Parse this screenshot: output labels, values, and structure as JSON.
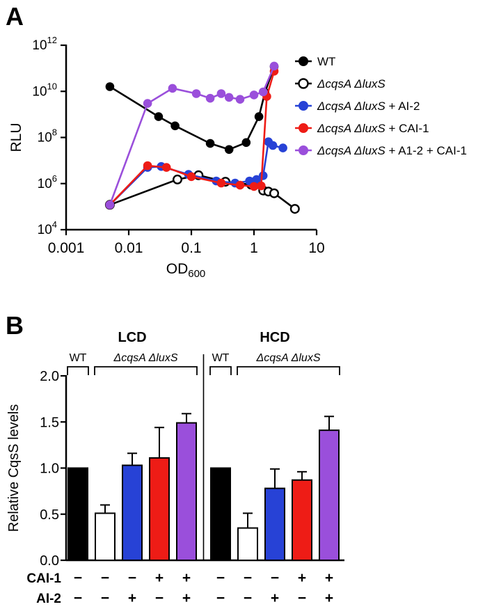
{
  "figure": {
    "panel_a_label": "A",
    "panel_b_label": "B"
  },
  "colors": {
    "black": "#000000",
    "white": "#ffffff",
    "blue": "#2742d6",
    "red": "#ee1c16",
    "purple": "#9a4fdb"
  },
  "chart_data": [
    {
      "type": "line",
      "id": "bioluminescence",
      "x_scale": "log",
      "y_scale": "log",
      "xlabel_base": "OD",
      "xlabel_sub": "600",
      "ylabel": "RLU",
      "x_ticks": [
        "0.001",
        "0.01",
        "0.1",
        "1",
        "10"
      ],
      "y_tick_exponents": [
        4,
        6,
        8,
        10,
        12
      ],
      "xlim": [
        0.001,
        10
      ],
      "ylim_exponents": [
        4,
        12
      ],
      "series": [
        {
          "id": "wt",
          "color": "#000000",
          "marker_fill": "#000000",
          "marker_stroke": "#000000",
          "marker_stroke_width": 1,
          "x": [
            0.005,
            0.03,
            0.055,
            0.2,
            0.4,
            0.75,
            1.2,
            1.5,
            2.1
          ],
          "y": [
            16000000000.0,
            800000000.0,
            320000000.0,
            55000000.0,
            30000000.0,
            60000000.0,
            800000000.0,
            9000000000.0,
            120000000000.0
          ]
        },
        {
          "id": "cqsA-luxS",
          "color": "#000000",
          "marker_fill": "#ffffff",
          "marker_stroke": "#000000",
          "marker_stroke_width": 2.4,
          "x": [
            0.005,
            0.06,
            0.13,
            0.35,
            0.9,
            1.4,
            1.7,
            2.1,
            4.5
          ],
          "y": [
            120000.0,
            1500000.0,
            2300000.0,
            1200000.0,
            900000.0,
            500000.0,
            450000.0,
            380000.0,
            80000.0
          ]
        },
        {
          "id": "cqsA-luxS-AI2",
          "color": "#2742d6",
          "marker_fill": "#2742d6",
          "marker_stroke": "#2742d6",
          "marker_stroke_width": 1,
          "x": [
            0.005,
            0.02,
            0.033,
            0.09,
            0.25,
            0.5,
            0.85,
            1.1,
            1.4,
            1.7,
            2.0,
            2.9
          ],
          "y": [
            120000.0,
            5000000.0,
            5500000.0,
            2500000.0,
            1300000.0,
            1050000.0,
            1300000.0,
            1500000.0,
            2200000.0,
            65000000.0,
            45000000.0,
            35000000.0
          ]
        },
        {
          "id": "cqsA-luxS-CAI1",
          "color": "#ee1c16",
          "marker_fill": "#ee1c16",
          "marker_stroke": "#ee1c16",
          "marker_stroke_width": 1,
          "x": [
            0.005,
            0.02,
            0.04,
            0.1,
            0.3,
            0.6,
            1.0,
            1.3,
            1.6,
            2.1
          ],
          "y": [
            120000.0,
            6000000.0,
            5000000.0,
            2000000.0,
            1050000.0,
            850000.0,
            750000.0,
            800000.0,
            6000000000.0,
            75000000000.0
          ]
        },
        {
          "id": "cqsA-luxS-AI2-CAI1",
          "color": "#9a4fdb",
          "marker_fill": "#9a4fdb",
          "marker_stroke": "#9a4fdb",
          "marker_stroke_width": 1,
          "x": [
            0.005,
            0.02,
            0.05,
            0.12,
            0.2,
            0.3,
            0.4,
            0.6,
            1.0,
            1.4,
            2.1
          ],
          "y": [
            120000.0,
            3000000000.0,
            13500000000.0,
            8000000000.0,
            5000000000.0,
            8000000000.0,
            5500000000.0,
            4500000000.0,
            7000000000.0,
            9500000000.0,
            125000000000.0
          ]
        }
      ],
      "legend": [
        {
          "italic": "",
          "roman": "WT",
          "line": "#000000",
          "fill": "#000000",
          "stroke": "#000000",
          "stroke_width": 1
        },
        {
          "italic": "ΔcqsA ΔluxS",
          "roman": "",
          "line": "#000000",
          "fill": "#ffffff",
          "stroke": "#000000",
          "stroke_width": 2.4
        },
        {
          "italic": "ΔcqsA ΔluxS",
          "roman": " + AI-2",
          "line": "#2742d6",
          "fill": "#2742d6",
          "stroke": "#2742d6",
          "stroke_width": 1
        },
        {
          "italic": "ΔcqsA ΔluxS",
          "roman": " + CAI-1",
          "line": "#ee1c16",
          "fill": "#ee1c16",
          "stroke": "#ee1c16",
          "stroke_width": 1
        },
        {
          "italic": "ΔcqsA ΔluxS",
          "roman": " + A1-2 + CAI-1",
          "line": "#9a4fdb",
          "fill": "#9a4fdb",
          "stroke": "#9a4fdb",
          "stroke_width": 1
        }
      ]
    },
    {
      "type": "bar",
      "id": "cqss-levels",
      "ylabel": "Relative CqsS levels",
      "y_ticks": [
        "0.0",
        "0.5",
        "1.0",
        "1.5",
        "2.0"
      ],
      "ymax": 2.0,
      "groups": [
        {
          "header": "LCD",
          "brackets": [
            {
              "label": "WT",
              "italic": false,
              "bars": [
                0,
                0
              ]
            },
            {
              "label": "ΔcqsA ΔluxS",
              "italic": true,
              "bars": [
                1,
                4
              ]
            }
          ],
          "bars": [
            {
              "color": "#000000",
              "value": 1.0,
              "err": 0
            },
            {
              "color": "#ffffff",
              "value": 0.51,
              "err": 0.09
            },
            {
              "color": "#2742d6",
              "value": 1.03,
              "err": 0.13
            },
            {
              "color": "#ee1c16",
              "value": 1.11,
              "err": 0.33
            },
            {
              "color": "#9a4fdb",
              "value": 1.49,
              "err": 0.1
            }
          ]
        },
        {
          "header": "HCD",
          "brackets": [
            {
              "label": "WT",
              "italic": false,
              "bars": [
                0,
                0
              ]
            },
            {
              "label": "ΔcqsA ΔluxS",
              "italic": true,
              "bars": [
                1,
                4
              ]
            }
          ],
          "bars": [
            {
              "color": "#000000",
              "value": 1.0,
              "err": 0
            },
            {
              "color": "#ffffff",
              "value": 0.35,
              "err": 0.16
            },
            {
              "color": "#2742d6",
              "value": 0.78,
              "err": 0.21
            },
            {
              "color": "#ee1c16",
              "value": 0.87,
              "err": 0.09
            },
            {
              "color": "#9a4fdb",
              "value": 1.41,
              "err": 0.15
            }
          ]
        }
      ],
      "sign_rows": [
        {
          "label": "CAI-1",
          "signs": [
            "−",
            "−",
            "−",
            "+",
            "+",
            "−",
            "−",
            "−",
            "+",
            "+"
          ]
        },
        {
          "label": "AI-2",
          "signs": [
            "−",
            "−",
            "+",
            "−",
            "+",
            "−",
            "−",
            "+",
            "−",
            "+"
          ]
        }
      ]
    }
  ]
}
